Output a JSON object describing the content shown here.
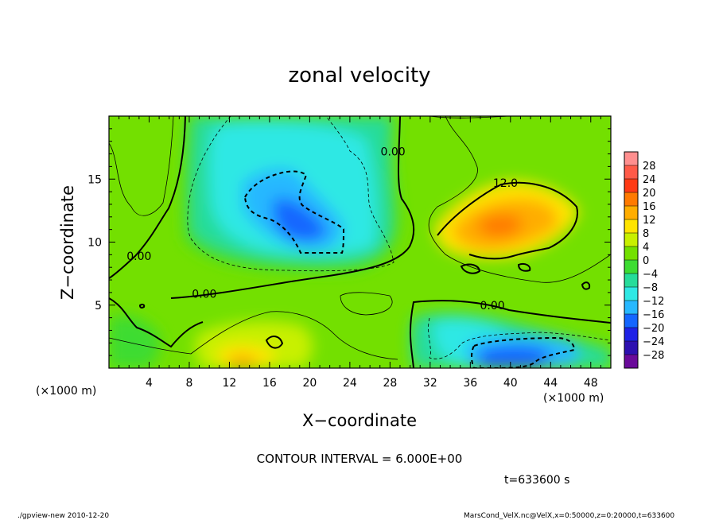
{
  "chart_data": {
    "type": "heatmap",
    "title": "zonal velocity",
    "xlabel": "X−coordinate",
    "ylabel": "Z−coordinate",
    "x_scale_label_left": "(×1000 m)",
    "x_scale_label_right": "(×1000 m)",
    "xlim": [
      0,
      50
    ],
    "ylim": [
      0,
      20
    ],
    "x_ticks": [
      4,
      8,
      12,
      16,
      20,
      24,
      28,
      32,
      36,
      40,
      44,
      48
    ],
    "y_ticks": [
      5,
      10,
      15
    ],
    "colorbar": {
      "labels": [
        "28",
        "24",
        "20",
        "16",
        "12",
        "8",
        "4",
        "0",
        "−4",
        "−8",
        "−12",
        "−16",
        "−20",
        "−24",
        "−28"
      ],
      "values": [
        28,
        24,
        20,
        16,
        12,
        8,
        4,
        0,
        -4,
        -8,
        -12,
        -16,
        -20,
        -24,
        -28
      ],
      "colors": [
        "#ff8f8f",
        "#ff5a48",
        "#ff3a14",
        "#ff7a00",
        "#ffad00",
        "#ffe400",
        "#c8f000",
        "#73e000",
        "#3ddc32",
        "#26dc9a",
        "#2ee8e4",
        "#27b8ff",
        "#1466ff",
        "#1e22e6",
        "#2d10b0",
        "#6a0a9a"
      ]
    },
    "contour_labels": [
      {
        "text": "12.0",
        "x": 39.5,
        "y": 14.5
      },
      {
        "text": "0.00",
        "x": 28.3,
        "y": 17.0
      },
      {
        "text": "0.00",
        "x": 3.0,
        "y": 8.7
      },
      {
        "text": "0.00",
        "x": 9.5,
        "y": 5.7
      },
      {
        "text": "0.00",
        "x": 38.2,
        "y": 4.8
      }
    ],
    "contour_interval": "CONTOUR INTERVAL = 6.000E+00",
    "time_label": "t=633600 s",
    "footer_left": "./gpview-new  2010-12-20",
    "footer_right": "MarsCond_VelX.nc@VelX,x=0:50000,z=0:20000,t=633600"
  }
}
